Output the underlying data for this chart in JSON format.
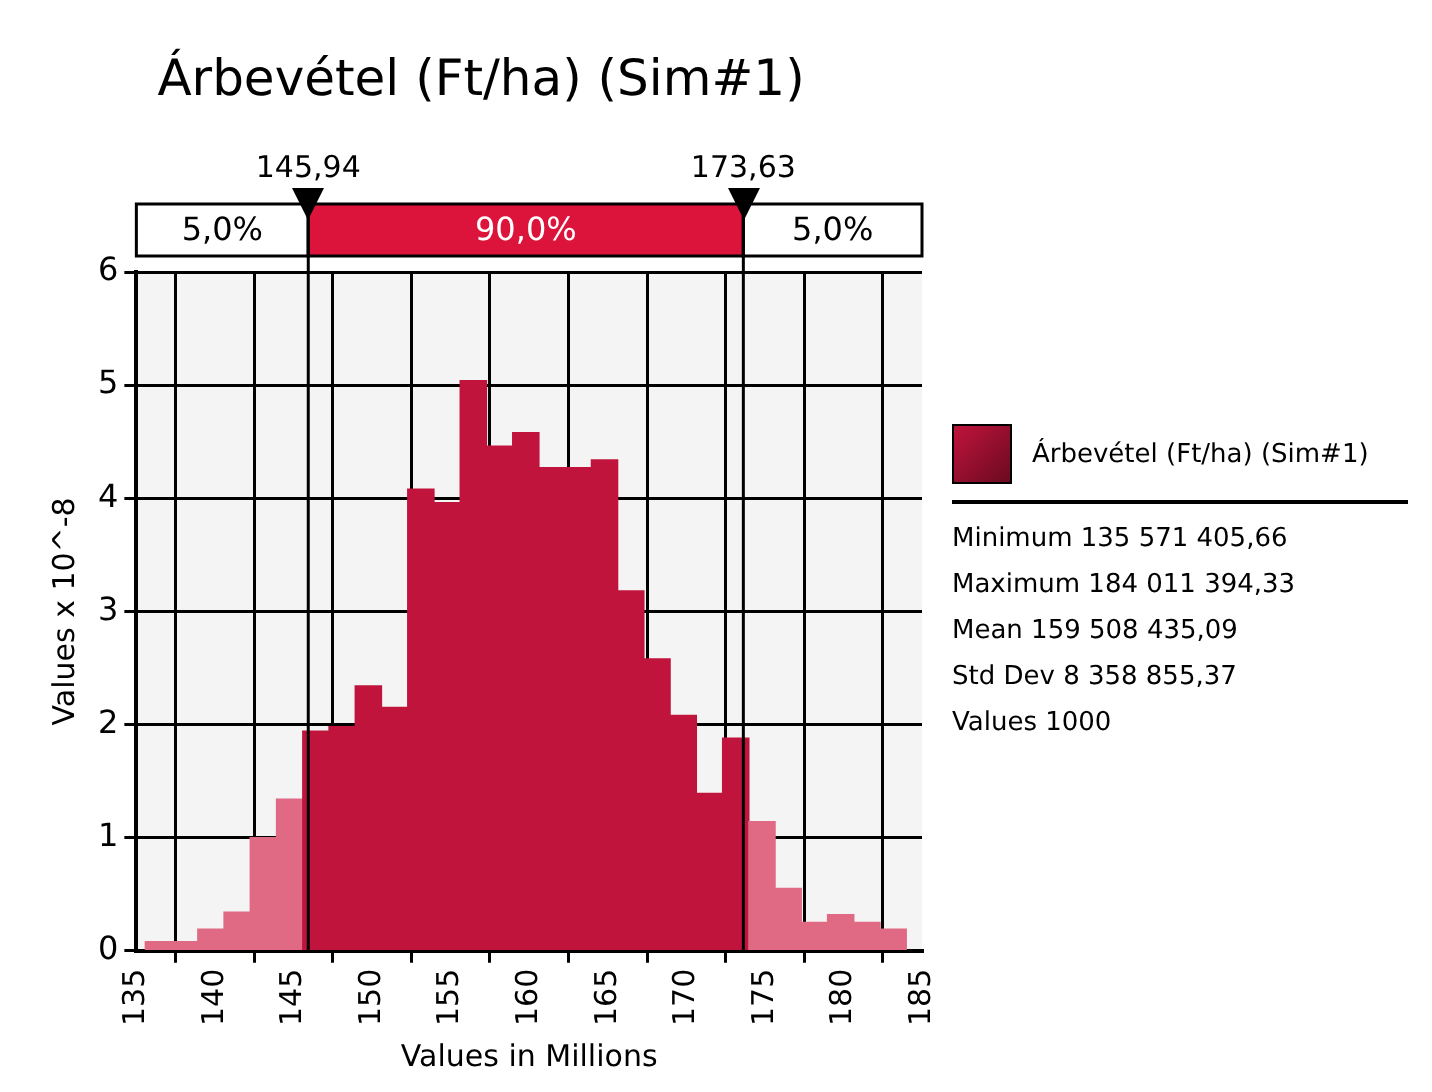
{
  "chart_data": {
    "type": "histogram",
    "title": "Árbevétel (Ft/ha) (Sim#1)",
    "xlabel": "Values in Millions",
    "ylabel": "Values x 10^-8",
    "bins": [
      135.57,
      137.24,
      138.91,
      140.58,
      142.25,
      143.92,
      145.59,
      147.26,
      148.93,
      150.6,
      152.27,
      153.94,
      155.61,
      157.28,
      158.95,
      160.62,
      162.29,
      163.96,
      165.63,
      167.3,
      168.97,
      170.64,
      172.31,
      173.98,
      175.65,
      177.32,
      178.99,
      180.66,
      182.33,
      184.0
    ],
    "series": [
      {
        "name": "Árbevétel (Ft/ha) (Sim#1)",
        "color": "#c0143c",
        "colors": [
          "#e06a84",
          "#e06a84",
          "#e06a84",
          "#e06a84",
          "#e06a84",
          "#e06a84",
          "#c0143c",
          "#c0143c",
          "#c0143c",
          "#c0143c",
          "#c0143c",
          "#c0143c",
          "#c0143c",
          "#c0143c",
          "#c0143c",
          "#c0143c",
          "#c0143c",
          "#c0143c",
          "#c0143c",
          "#c0143c",
          "#c0143c",
          "#c0143c",
          "#c0143c",
          "#e06a84",
          "#e06a84",
          "#e06a84",
          "#e06a84",
          "#e06a84",
          "#e06a84"
        ],
        "values": [
          0.08,
          0.08,
          0.19,
          0.34,
          1.0,
          1.34,
          1.94,
          1.98,
          2.34,
          2.15,
          4.08,
          3.96,
          5.04,
          4.46,
          4.58,
          4.27,
          4.27,
          4.34,
          3.18,
          2.58,
          2.08,
          1.39,
          1.88,
          1.14,
          0.55,
          0.25,
          0.32,
          0.25,
          0.19
        ]
      }
    ],
    "xlim": [
      135,
      185
    ],
    "xticks": [
      135,
      140,
      145,
      150,
      155,
      160,
      165,
      170,
      175,
      180,
      185
    ],
    "ylim": [
      0,
      6
    ],
    "yticks": [
      0,
      1,
      2,
      3,
      4,
      5,
      6
    ],
    "grid": true,
    "legend": "right",
    "ref_lines": [
      {
        "axis": "x",
        "value": 145.94,
        "label": "145,94"
      },
      {
        "axis": "x",
        "value": 173.63,
        "label": "173,63"
      }
    ],
    "annotations": [
      "5,0%",
      "90,0%",
      "5,0%",
      "Minimum 135 571 405,66",
      "Maximum 184 011 394,33",
      "Mean 159 508 435,09",
      "Std Dev 8 358 855,37",
      "Values 1000"
    ]
  }
}
